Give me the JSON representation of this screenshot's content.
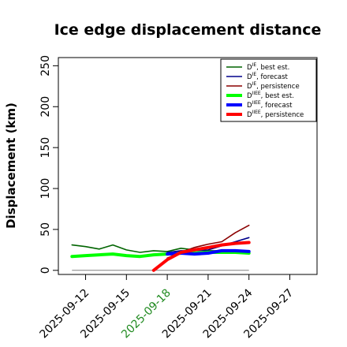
{
  "chart_data": {
    "type": "line",
    "title": "Ice edge displacement distance",
    "xlabel": "",
    "ylabel": "Displacement (km)",
    "xlim": [
      "2025-09-10",
      "2025-09-29"
    ],
    "ylim": [
      -5,
      260
    ],
    "x_ticks": [
      "2025-09-12",
      "2025-09-15",
      "2025-09-18",
      "2025-09-21",
      "2025-09-24",
      "2025-09-27"
    ],
    "highlight_tick": "2025-09-18",
    "highlight_color": "#228b22",
    "y_ticks": [
      0,
      50,
      100,
      150,
      200,
      250
    ],
    "grid": false,
    "legend_position": "top-right",
    "legend": [
      {
        "base": "D",
        "sup": "IE",
        "suffix": ", best est.",
        "color": "#006400",
        "width": "thin"
      },
      {
        "base": "D",
        "sup": "IE",
        "suffix": ", forecast",
        "color": "#00008b",
        "width": "thin"
      },
      {
        "base": "D",
        "sup": "IE",
        "suffix": ", persistence",
        "color": "#8b0000",
        "width": "thin"
      },
      {
        "base": "D",
        "sup": "IIEE",
        "suffix": ", best est.",
        "color": "#00ff00",
        "width": "thick"
      },
      {
        "base": "D",
        "sup": "IIEE",
        "suffix": ", forecast",
        "color": "#0000ff",
        "width": "thick"
      },
      {
        "base": "D",
        "sup": "IIEE",
        "suffix": ", persistence",
        "color": "#ff0000",
        "width": "thick"
      }
    ],
    "baseline": {
      "x": [
        "2025-09-11",
        "2025-09-24"
      ],
      "y": 0,
      "color": "#808080"
    },
    "series": [
      {
        "color": "#006400",
        "width": "thin",
        "x": [
          "2025-09-11",
          "2025-09-12",
          "2025-09-13",
          "2025-09-14",
          "2025-09-15",
          "2025-09-16",
          "2025-09-17",
          "2025-09-18",
          "2025-09-19",
          "2025-09-20",
          "2025-09-21",
          "2025-09-22",
          "2025-09-23",
          "2025-09-24"
        ],
        "y": [
          31,
          29,
          26,
          31,
          25,
          22,
          24,
          23,
          27,
          25,
          24,
          24,
          24,
          22
        ]
      },
      {
        "color": "#00008b",
        "width": "thin",
        "x": [
          "2025-09-18",
          "2025-09-19",
          "2025-09-20",
          "2025-09-21",
          "2025-09-22",
          "2025-09-23",
          "2025-09-24"
        ],
        "y": [
          22,
          24,
          24,
          25,
          30,
          35,
          40
        ]
      },
      {
        "color": "#8b0000",
        "width": "thin",
        "x": [
          "2025-09-18",
          "2025-09-19",
          "2025-09-20",
          "2025-09-21",
          "2025-09-22",
          "2025-09-23",
          "2025-09-24"
        ],
        "y": [
          15,
          22,
          28,
          32,
          35,
          46,
          55
        ]
      },
      {
        "color": "#00ff00",
        "width": "thick",
        "x": [
          "2025-09-11",
          "2025-09-12",
          "2025-09-13",
          "2025-09-14",
          "2025-09-15",
          "2025-09-16",
          "2025-09-17",
          "2025-09-18",
          "2025-09-19",
          "2025-09-20",
          "2025-09-21",
          "2025-09-22",
          "2025-09-23",
          "2025-09-24"
        ],
        "y": [
          17,
          18,
          19,
          20,
          18,
          17,
          19,
          20,
          21,
          21,
          22,
          22,
          22,
          21
        ]
      },
      {
        "color": "#0000ff",
        "width": "thick",
        "x": [
          "2025-09-18",
          "2025-09-19",
          "2025-09-20",
          "2025-09-21",
          "2025-09-22",
          "2025-09-23",
          "2025-09-24"
        ],
        "y": [
          20,
          21,
          20,
          21,
          24,
          24,
          23
        ]
      },
      {
        "color": "#ff0000",
        "width": "thick",
        "x": [
          "2025-09-17",
          "2025-09-18",
          "2025-09-19",
          "2025-09-20",
          "2025-09-21",
          "2025-09-22",
          "2025-09-23",
          "2025-09-24"
        ],
        "y": [
          0,
          13,
          22,
          25,
          28,
          31,
          33,
          34
        ]
      }
    ]
  }
}
